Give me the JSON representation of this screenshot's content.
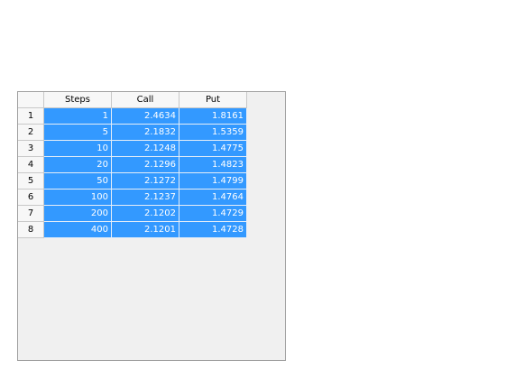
{
  "table": {
    "columns": [
      "Steps",
      "Call",
      "Put"
    ],
    "rows": [
      {
        "index": "1",
        "cells": [
          "1",
          "2.4634",
          "1.8161"
        ]
      },
      {
        "index": "2",
        "cells": [
          "5",
          "2.1832",
          "1.5359"
        ]
      },
      {
        "index": "3",
        "cells": [
          "10",
          "2.1248",
          "1.4775"
        ]
      },
      {
        "index": "4",
        "cells": [
          "20",
          "2.1296",
          "1.4823"
        ]
      },
      {
        "index": "5",
        "cells": [
          "50",
          "2.1272",
          "1.4799"
        ]
      },
      {
        "index": "6",
        "cells": [
          "100",
          "2.1237",
          "1.4764"
        ]
      },
      {
        "index": "7",
        "cells": [
          "200",
          "2.1202",
          "1.4729"
        ]
      },
      {
        "index": "8",
        "cells": [
          "400",
          "2.1201",
          "1.4728"
        ]
      }
    ],
    "selection_color": "#3399ff",
    "selected_text_color": "#ffffff"
  }
}
